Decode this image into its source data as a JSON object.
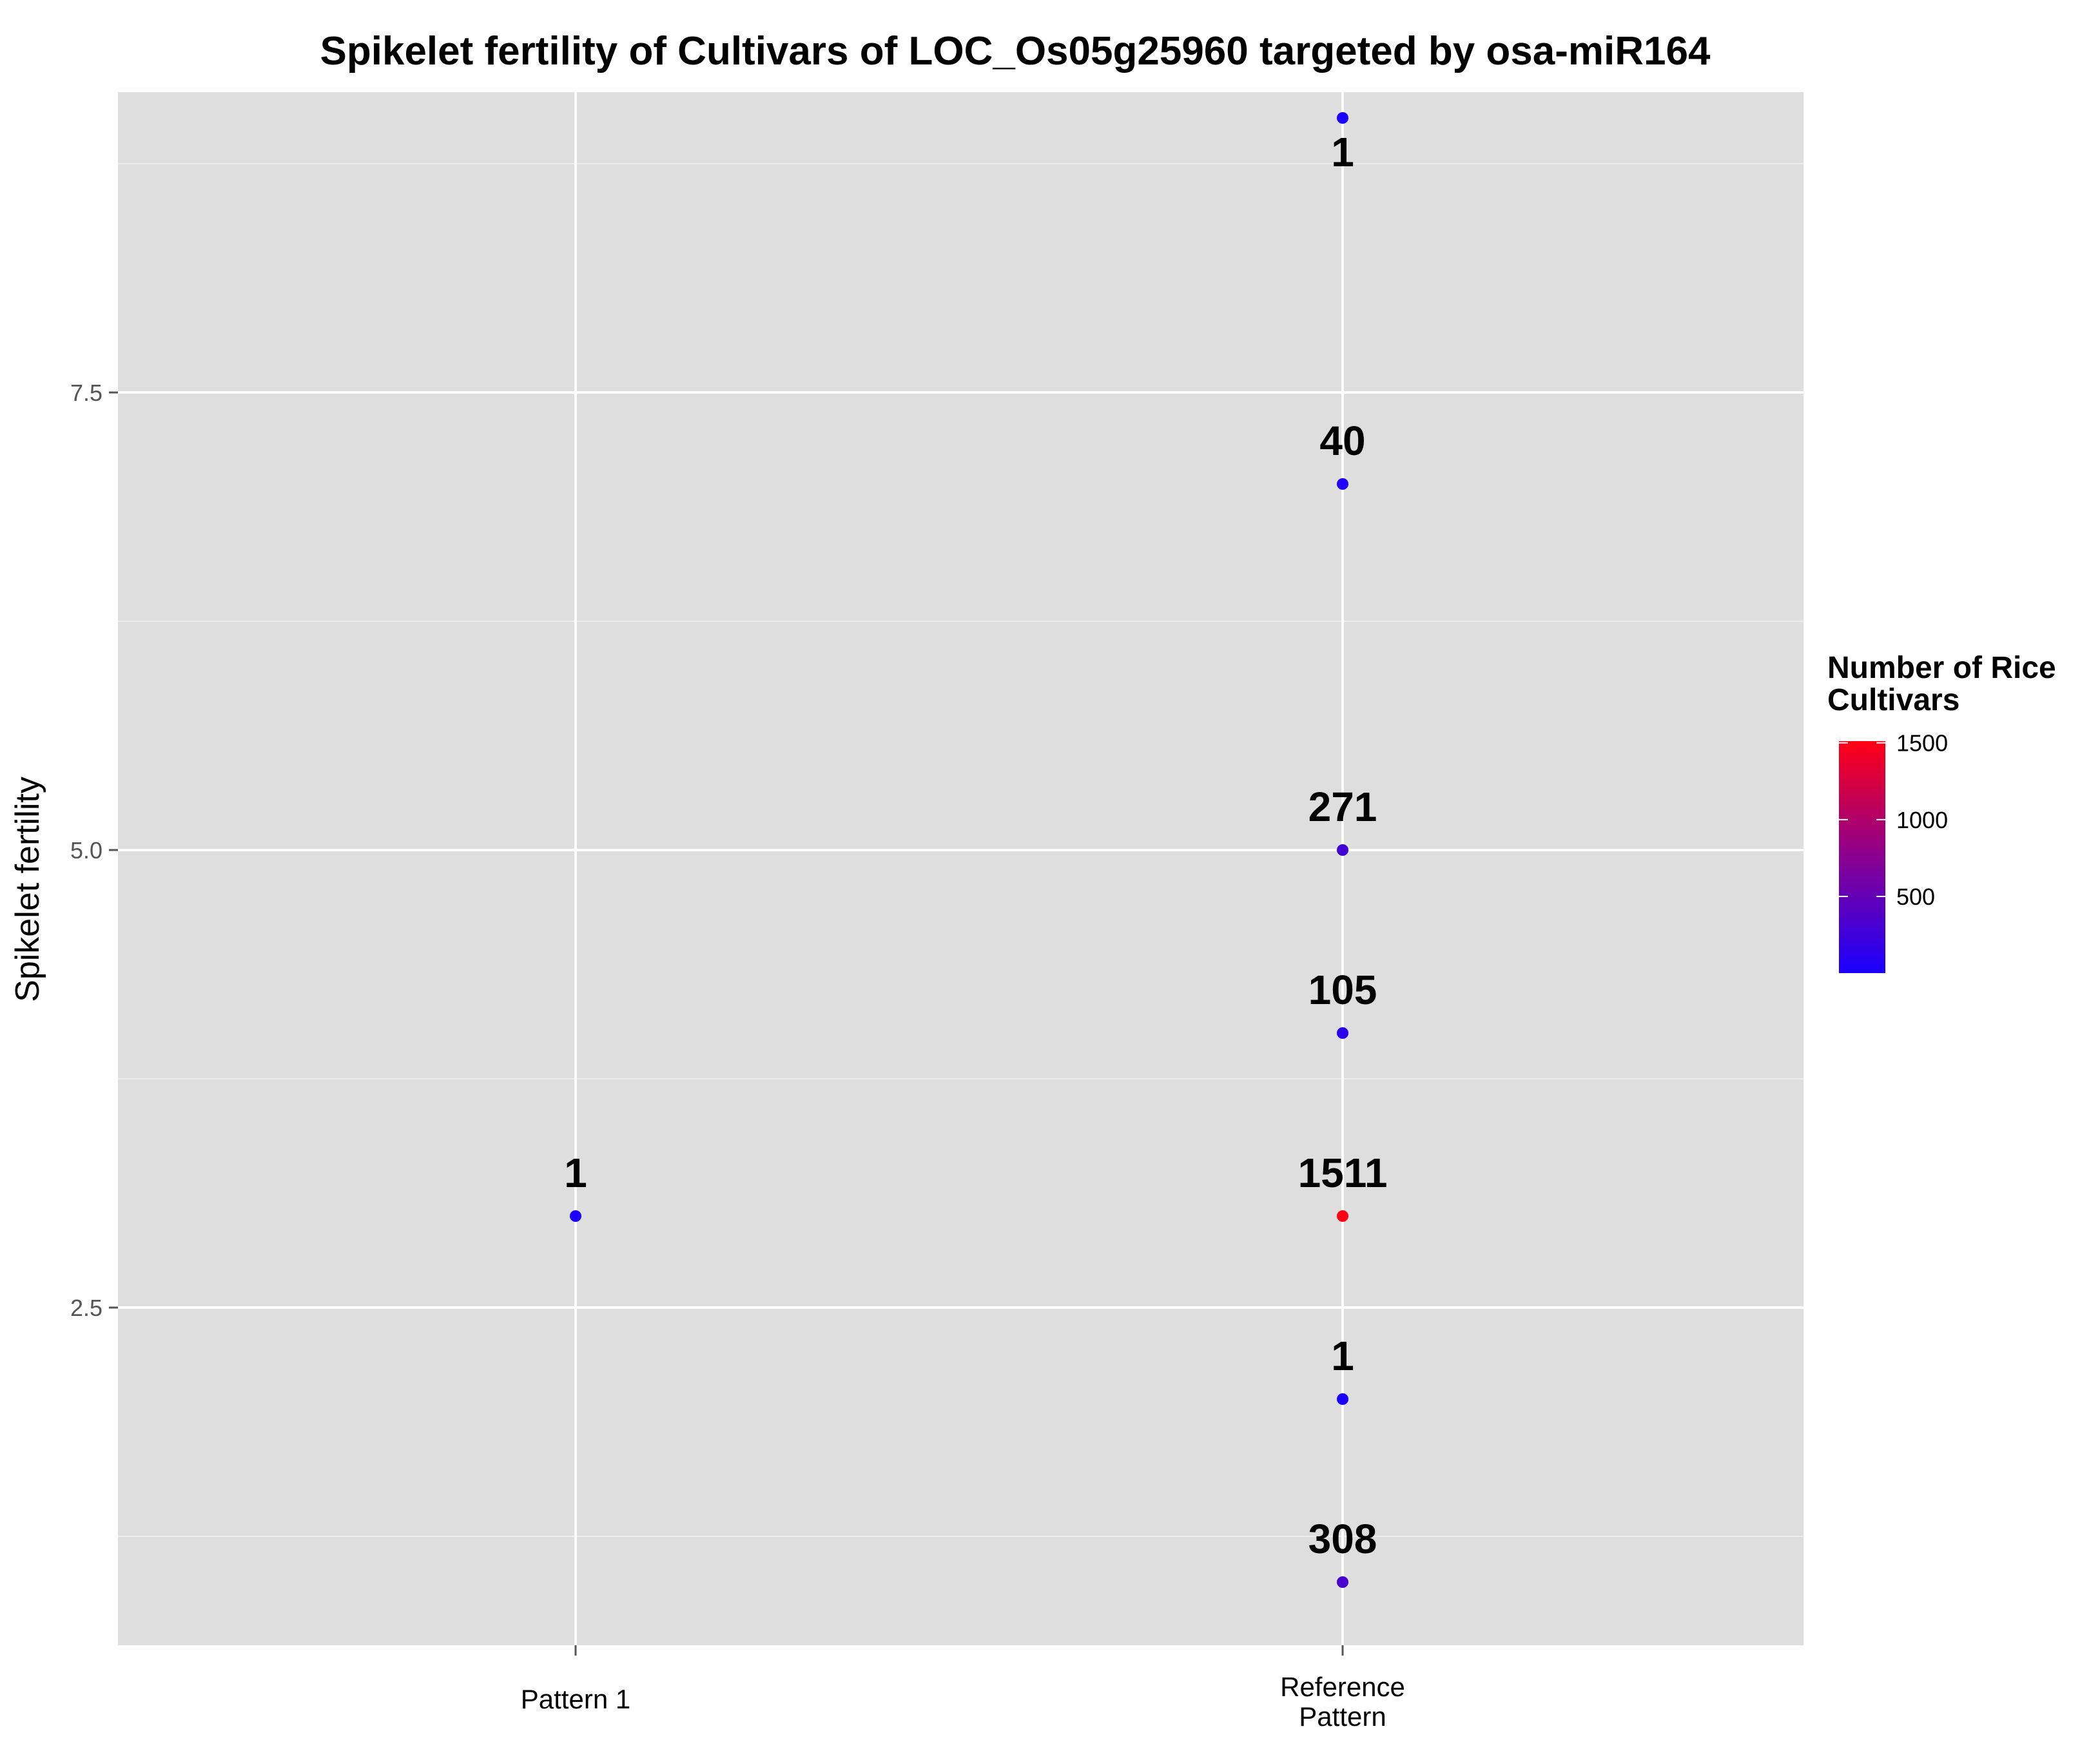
{
  "chart_data": {
    "type": "scatter",
    "title": "Spikelet fertility of Cultivars of LOC_Os05g25960 targeted by osa-miR164",
    "xlabel": "",
    "ylabel": "Spikelet fertility",
    "categories": [
      "Pattern 1",
      "Reference\nPattern"
    ],
    "yticks": [
      "2.5",
      "5.0",
      "7.5"
    ],
    "ylim": [
      0.6,
      9.1
    ],
    "grid": true,
    "points": [
      {
        "category": "Pattern 1",
        "y": 3,
        "count": 1,
        "label": "1"
      },
      {
        "category": "Reference\nPattern",
        "y": 9,
        "count": 1,
        "label": "1"
      },
      {
        "category": "Reference\nPattern",
        "y": 7,
        "count": 40,
        "label": "40"
      },
      {
        "category": "Reference\nPattern",
        "y": 5,
        "count": 271,
        "label": "271"
      },
      {
        "category": "Reference\nPattern",
        "y": 4,
        "count": 105,
        "label": "105"
      },
      {
        "category": "Reference\nPattern",
        "y": 3,
        "count": 1511,
        "label": "1511"
      },
      {
        "category": "Reference\nPattern",
        "y": 2,
        "count": 1,
        "label": "1"
      },
      {
        "category": "Reference\nPattern",
        "y": 1,
        "count": 308,
        "label": "308"
      }
    ],
    "legend": {
      "title": "Number of Rice\nCultivars",
      "position": "right",
      "ticks": [
        "500",
        "1000",
        "1500"
      ],
      "range": [
        1,
        1511
      ],
      "color_low": "#1a00ff",
      "color_high": "#ff0015"
    },
    "colors": {
      "panel_background": "#dedede",
      "grid": "#ffffff"
    }
  }
}
